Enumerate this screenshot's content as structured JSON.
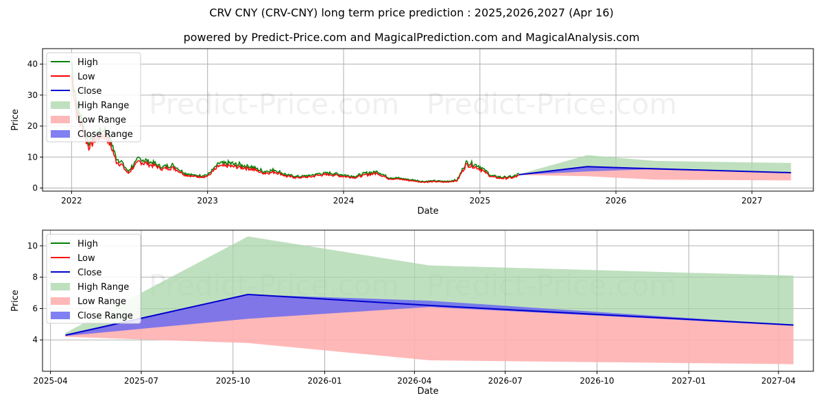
{
  "title": "CRV CNY (CRV-CNY) long term price prediction : 2025,2026,2027 (Apr 16)",
  "subtitle": "powered by Predict-Price.com and MagicalPrediction.com and MagicalAnalysis.com",
  "watermark": "Predict-Price.com",
  "colors": {
    "high": "#008000",
    "low": "#ff0000",
    "close": "#0000cd",
    "high_range": "#a9d5a9",
    "low_range": "#ffb0b0",
    "close_range": "#6a6af0"
  },
  "legend": [
    "High",
    "Low",
    "Close",
    "High Range",
    "Low Range",
    "Close Range"
  ],
  "chart_data": [
    {
      "type": "line",
      "xlabel": "Date",
      "ylabel": "Price",
      "xlim": [
        "2021-10-15",
        "2027-06-15"
      ],
      "ylim": [
        -1,
        45
      ],
      "x_ticks": [
        "2022",
        "2023",
        "2024",
        "2025",
        "2026",
        "2027"
      ],
      "y_ticks": [
        0,
        10,
        20,
        30,
        40
      ],
      "grid": true,
      "legend_position": "top-left",
      "history": {
        "dates": [
          "2022-01-01",
          "2022-01-15",
          "2022-02-01",
          "2022-02-15",
          "2022-03-01",
          "2022-03-15",
          "2022-04-01",
          "2022-04-15",
          "2022-05-01",
          "2022-05-15",
          "2022-06-01",
          "2022-06-15",
          "2022-07-01",
          "2022-08-01",
          "2022-09-01",
          "2022-10-01",
          "2022-11-01",
          "2022-12-01",
          "2023-01-01",
          "2023-02-01",
          "2023-03-01",
          "2023-04-01",
          "2023-05-01",
          "2023-06-01",
          "2023-07-01",
          "2023-08-01",
          "2023-09-01",
          "2023-10-01",
          "2023-11-01",
          "2023-12-01",
          "2024-01-01",
          "2024-02-01",
          "2024-03-01",
          "2024-04-01",
          "2024-05-01",
          "2024-06-01",
          "2024-07-01",
          "2024-08-01",
          "2024-09-01",
          "2024-10-01",
          "2024-11-01",
          "2024-11-25",
          "2024-12-10",
          "2025-01-01",
          "2025-02-01",
          "2025-03-01",
          "2025-04-01",
          "2025-04-16"
        ],
        "close": [
          38,
          25,
          20,
          14,
          16,
          17,
          18,
          15,
          9,
          8,
          5,
          7,
          9,
          8,
          6.5,
          7,
          4.5,
          3.8,
          4,
          7.5,
          7.5,
          7,
          6.5,
          5,
          5.5,
          4,
          3.5,
          3.8,
          4.5,
          4.5,
          4,
          3.6,
          4.5,
          5,
          3.2,
          3,
          2.5,
          2,
          2.2,
          2,
          2.5,
          8,
          7.5,
          6.5,
          3.8,
          3.3,
          3.5,
          4.3
        ]
      },
      "forecast": {
        "dates": [
          "2025-04-16",
          "2025-10-16",
          "2026-04-16",
          "2027-04-16"
        ],
        "close": [
          4.3,
          6.9,
          6.2,
          4.95
        ],
        "high_range": [
          4.45,
          10.6,
          8.75,
          8.1
        ],
        "low_range": [
          4.2,
          3.8,
          2.7,
          2.45
        ],
        "close_range_upper": [
          4.35,
          6.9,
          6.5,
          4.95
        ],
        "close_range_lower": [
          4.25,
          5.35,
          6.1,
          4.9
        ]
      }
    },
    {
      "type": "area",
      "xlabel": "Date",
      "ylabel": "Price",
      "xlim": [
        "2025-03-24",
        "2027-05-06"
      ],
      "ylim": [
        2,
        11
      ],
      "x_ticks": [
        "2025-04",
        "2025-07",
        "2025-10",
        "2026-01",
        "2026-04",
        "2026-07",
        "2026-10",
        "2027-01",
        "2027-04"
      ],
      "y_ticks": [
        4,
        6,
        8,
        10
      ],
      "grid": true,
      "legend_position": "top-left",
      "series": [
        {
          "name": "Close",
          "x": [
            "2025-04-16",
            "2025-10-16",
            "2026-04-16",
            "2027-04-16"
          ],
          "values": [
            4.3,
            6.9,
            6.2,
            4.95
          ]
        },
        {
          "name": "High Range",
          "x": [
            "2025-04-16",
            "2025-10-16",
            "2026-04-16",
            "2027-04-16"
          ],
          "values": [
            4.45,
            10.6,
            8.75,
            8.1
          ]
        },
        {
          "name": "Low Range",
          "x": [
            "2025-04-16",
            "2025-10-16",
            "2026-04-16",
            "2027-04-16"
          ],
          "values": [
            4.2,
            3.8,
            2.7,
            2.45
          ]
        },
        {
          "name": "Close Range",
          "x": [
            "2025-04-16",
            "2025-10-16",
            "2026-04-16",
            "2027-04-16"
          ],
          "upper": [
            4.35,
            6.9,
            6.5,
            4.95
          ],
          "lower": [
            4.25,
            5.35,
            6.1,
            4.9
          ]
        }
      ]
    }
  ]
}
